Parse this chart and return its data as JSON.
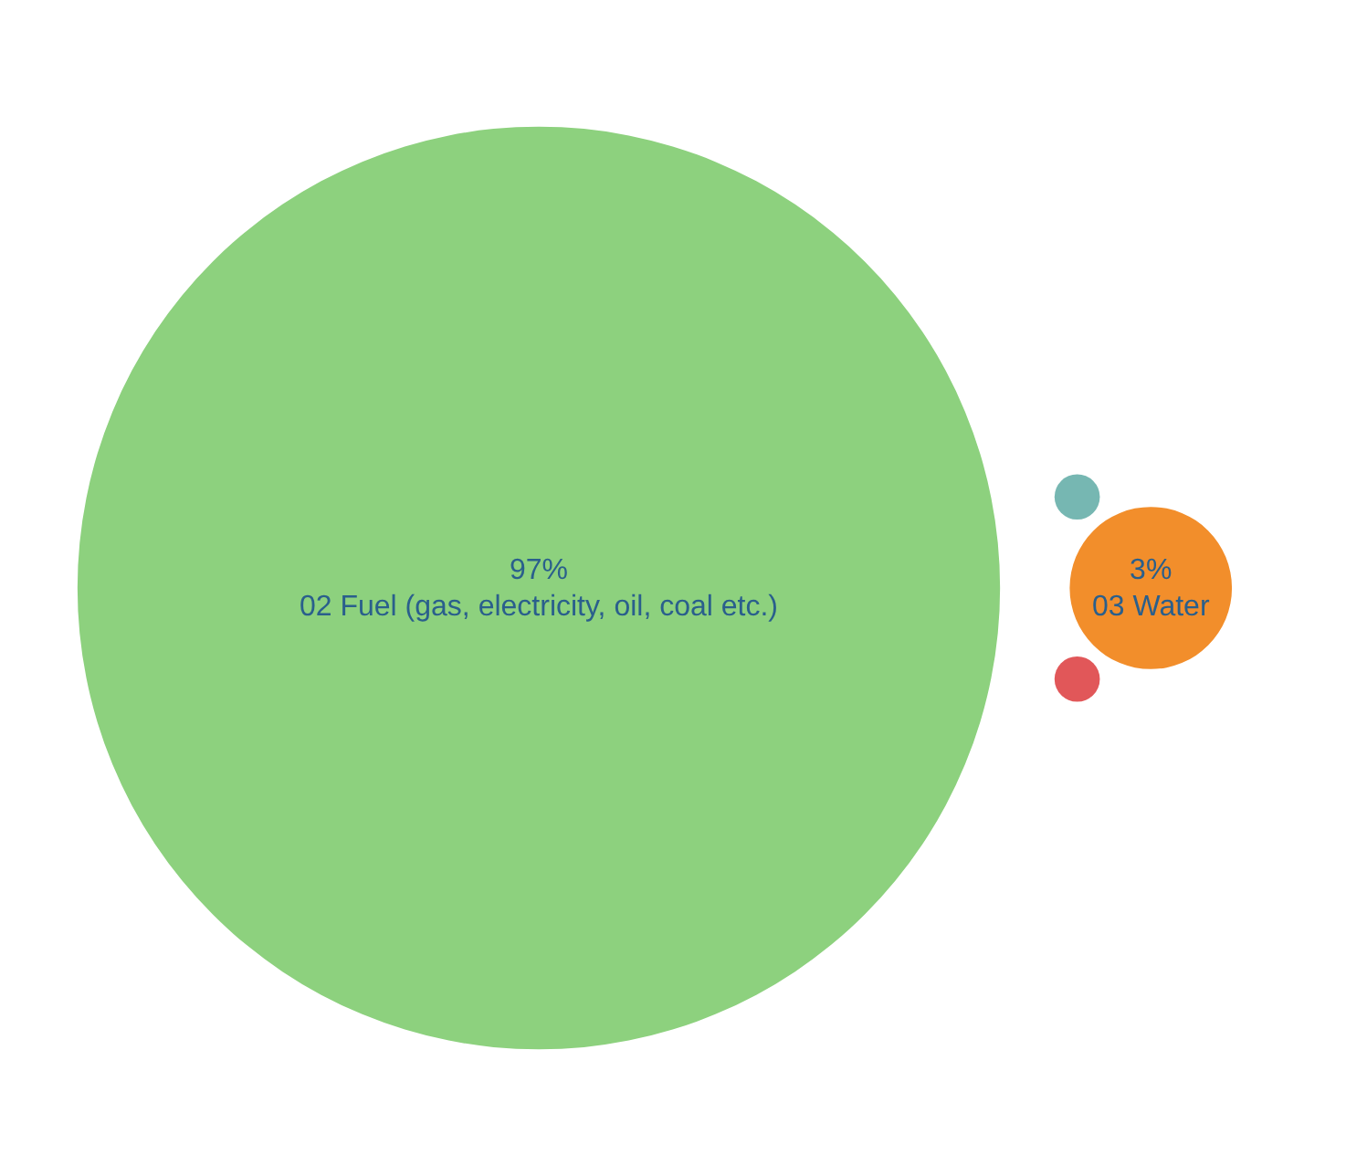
{
  "chart_data": {
    "type": "other",
    "categories": [
      "02 Fuel (gas, electricity, oil, coal etc.)",
      "03 Water",
      null,
      null
    ],
    "values": [
      97,
      3,
      null,
      null
    ],
    "value_labels": [
      "97%",
      "3%",
      null,
      null
    ],
    "colors": [
      "#8dd17e",
      "#f28e2b",
      "#76b7b2",
      "#e15759"
    ]
  }
}
